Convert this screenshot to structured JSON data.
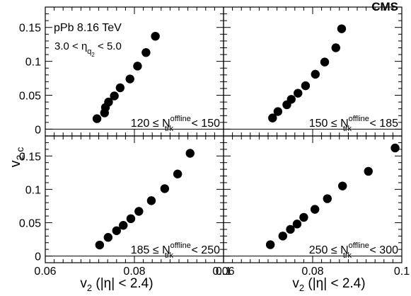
{
  "experiment": "CMS",
  "colors": {
    "marker": "#000000",
    "axis": "#000000",
    "background": "#ffffff"
  },
  "chart_data": {
    "type": "scatter",
    "layout": "2x2 shared axes",
    "xlim": [
      0.06,
      0.1
    ],
    "ylim": [
      -0.01,
      0.18
    ],
    "grid": false,
    "x_ticks": [
      {
        "value": 0.06,
        "label": "0.06"
      },
      {
        "value": 0.08,
        "label": "0.08"
      },
      {
        "value": 0.1,
        "label": "0.1"
      }
    ],
    "y_ticks": [
      {
        "value": 0,
        "label": "0"
      },
      {
        "value": 0.05,
        "label": "0.05"
      },
      {
        "value": 0.1,
        "label": "0.1"
      },
      {
        "value": 0.15,
        "label": "0.15"
      }
    ],
    "xlabel": {
      "main": "v",
      "sub": "2",
      "rest": " (|η| < 2.4)"
    },
    "ylabel": {
      "main": "v",
      "sub": "2,c"
    },
    "annotations": {
      "system": "pPb 8.16 TeV",
      "eta_lo": "3.0 < η",
      "eta_sub": "q",
      "eta_subsub": "2",
      "eta_hi": " < 5.0"
    },
    "panels": [
      {
        "label": {
          "lo": "120 ≤ N",
          "sup": "offline",
          "sub": "trk",
          "hi": " < 150"
        },
        "x": [
          0.0716,
          0.0733,
          0.0735,
          0.0742,
          0.0755,
          0.0768,
          0.079,
          0.0807,
          0.0826,
          0.0847
        ],
        "y": [
          0.0155,
          0.024,
          0.032,
          0.04,
          0.049,
          0.061,
          0.074,
          0.093,
          0.113,
          0.137
        ]
      },
      {
        "label": {
          "lo": "150 ≤ N",
          "sup": "offline",
          "sub": "trk",
          "hi": " < 185"
        },
        "x": [
          0.071,
          0.0722,
          0.0742,
          0.0752,
          0.0767,
          0.0784,
          0.0806,
          0.0827,
          0.0852,
          0.0865
        ],
        "y": [
          0.0165,
          0.026,
          0.036,
          0.044,
          0.053,
          0.064,
          0.081,
          0.099,
          0.12,
          0.148
        ]
      },
      {
        "label": {
          "lo": "185 ≤ N",
          "sup": "offline",
          "sub": "trk",
          "hi": " < 250"
        },
        "x": [
          0.0722,
          0.0741,
          0.076,
          0.0775,
          0.0792,
          0.081,
          0.0838,
          0.0868,
          0.0897,
          0.0925
        ],
        "y": [
          0.0165,
          0.028,
          0.038,
          0.046,
          0.056,
          0.067,
          0.083,
          0.101,
          0.123,
          0.154
        ]
      },
      {
        "label": {
          "lo": "250 ≤ N",
          "sup": "offline",
          "sub": "trk",
          "hi": " < 300"
        },
        "x": [
          0.0705,
          0.0733,
          0.075,
          0.0765,
          0.078,
          0.0805,
          0.0833,
          0.0867,
          0.0925,
          0.0985
        ],
        "y": [
          0.017,
          0.03,
          0.04,
          0.048,
          0.058,
          0.07,
          0.086,
          0.105,
          0.127,
          0.162
        ]
      }
    ]
  }
}
